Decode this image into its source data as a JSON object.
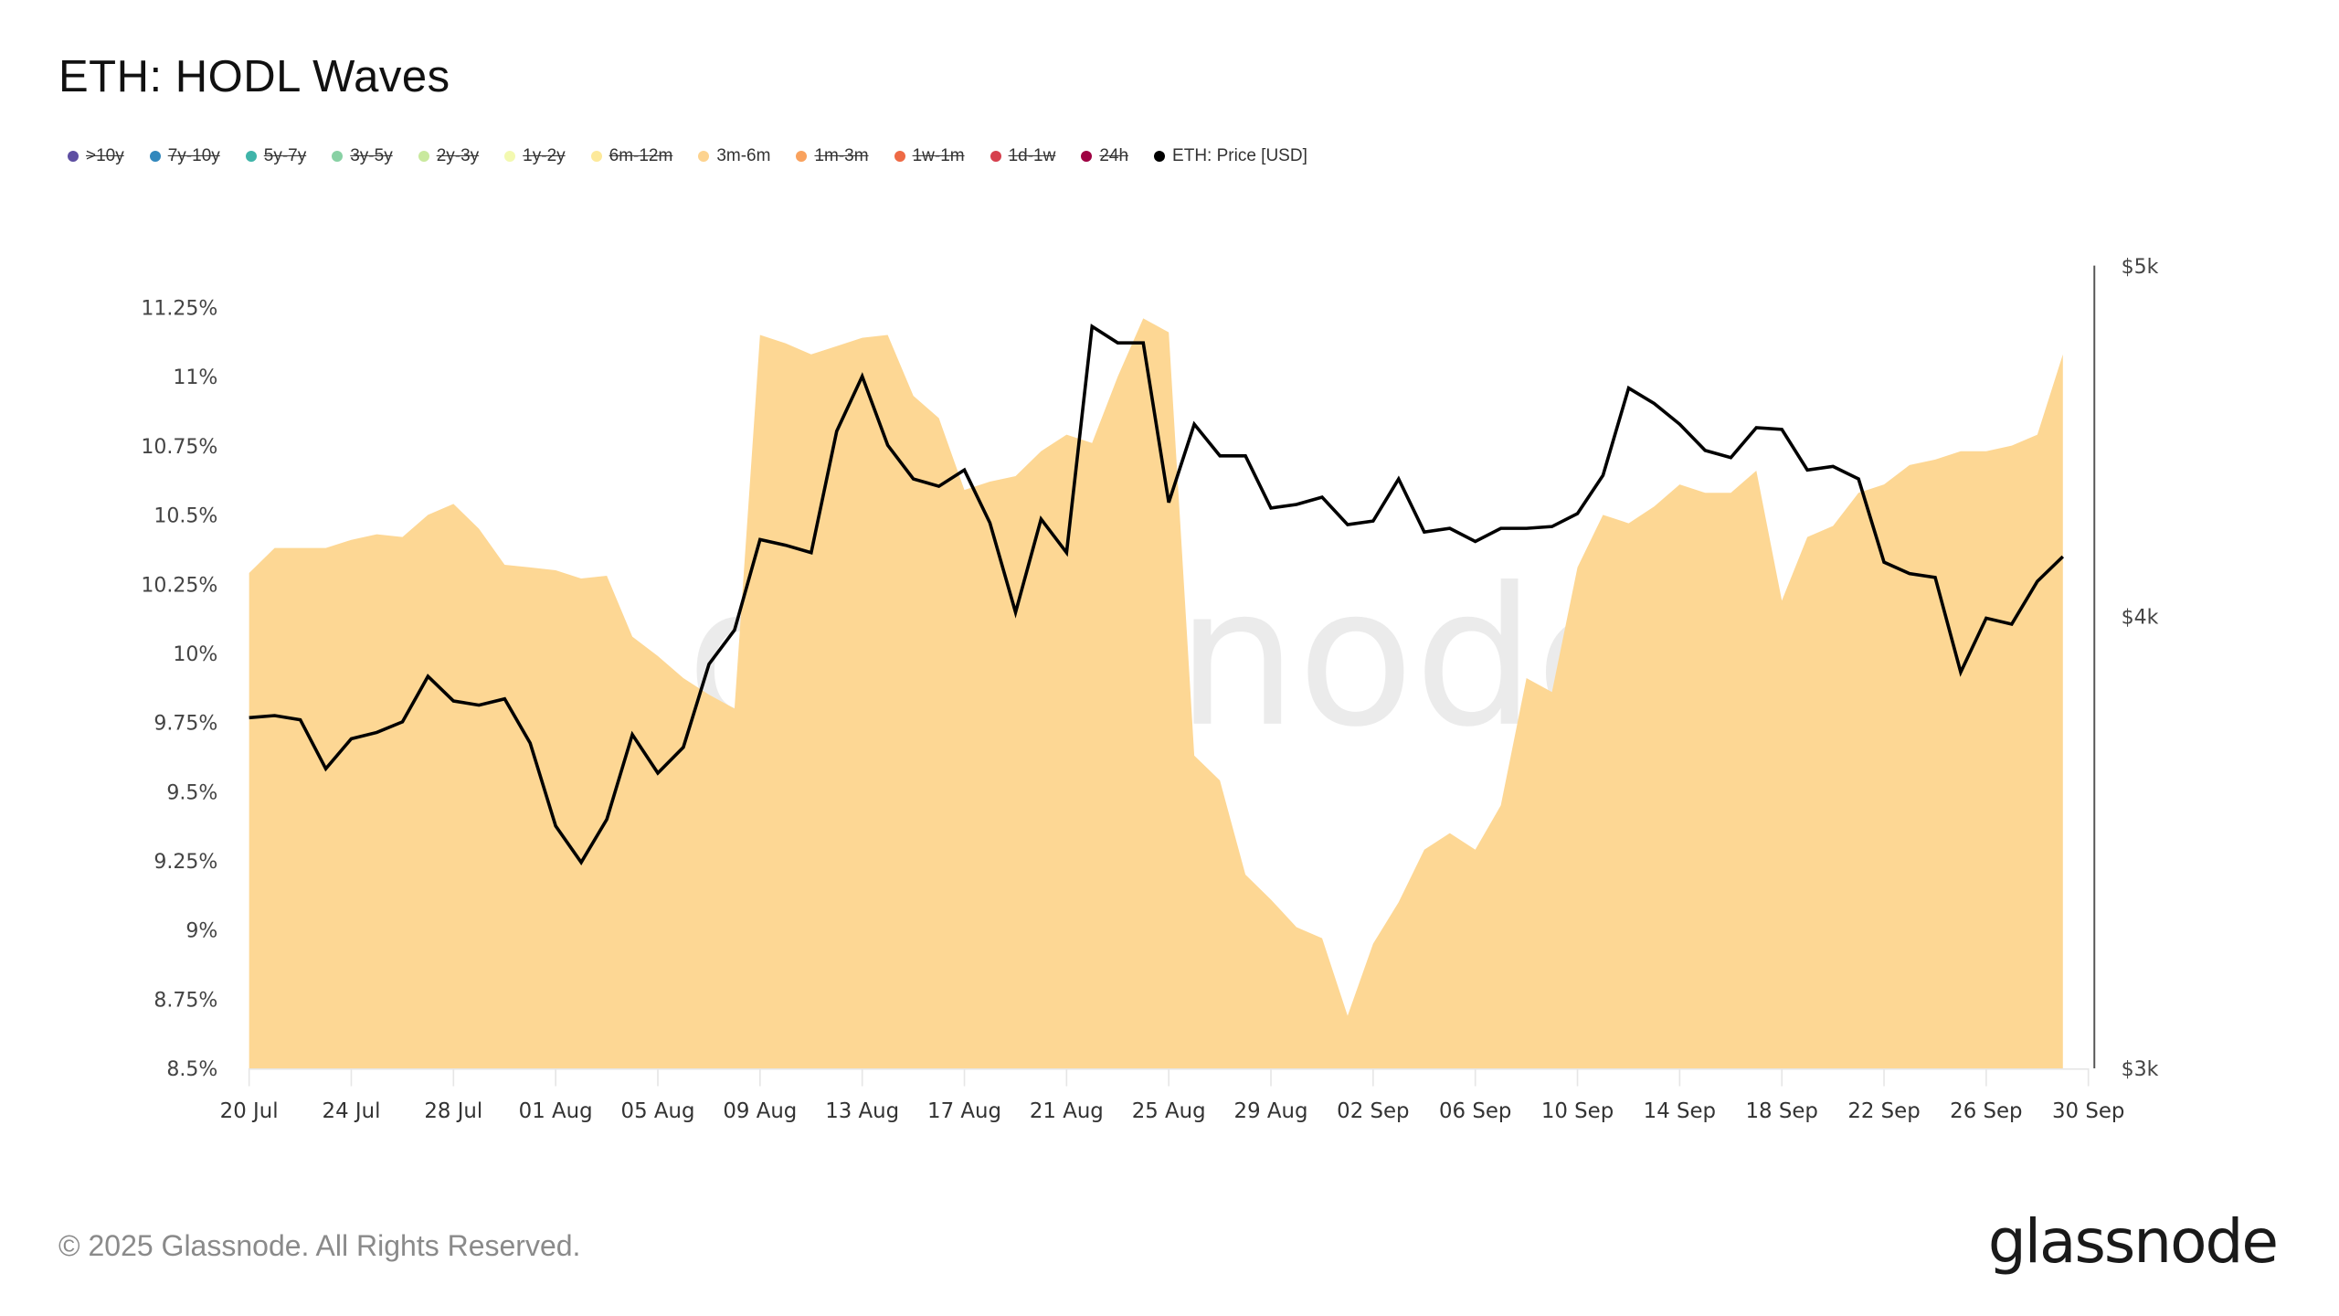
{
  "header": {
    "title": "ETH: HODL Waves"
  },
  "legend": [
    {
      "label": ">10y",
      "color": "#5e4fa2",
      "active": false
    },
    {
      "label": "7y-10y",
      "color": "#3288bd",
      "active": false
    },
    {
      "label": "5y-7y",
      "color": "#3fb4a9",
      "active": false
    },
    {
      "label": "3y-5y",
      "color": "#88d1a4",
      "active": false
    },
    {
      "label": "2y-3y",
      "color": "#c9e99e",
      "active": false
    },
    {
      "label": "1y-2y",
      "color": "#f3f9b0",
      "active": false
    },
    {
      "label": "6m-12m",
      "color": "#fde99a",
      "active": false
    },
    {
      "label": "3m-6m",
      "color": "#fdd38f",
      "active": true
    },
    {
      "label": "1m-3m",
      "color": "#f9a25e",
      "active": false
    },
    {
      "label": "1w-1m",
      "color": "#ee6a45",
      "active": false
    },
    {
      "label": "1d-1w",
      "color": "#d6404e",
      "active": false
    },
    {
      "label": "24h",
      "color": "#9e0142",
      "active": false
    },
    {
      "label": "ETH: Price [USD]",
      "color": "#000000",
      "active": true
    }
  ],
  "footer": {
    "copyright": "© 2025 Glassnode. All Rights Reserved.",
    "logo": "glassnode"
  },
  "watermark": "glassnode",
  "chart_data": {
    "type": "area",
    "title": "ETH: HODL Waves",
    "xlabel": "",
    "ylabel": "",
    "ylim": [
      8.5,
      11.25
    ],
    "y2lim": [
      3000,
      5000
    ],
    "y2scale": "log",
    "grid": false,
    "legend_position": "top",
    "x_tick_labels": [
      "20 Jul",
      "24 Jul",
      "28 Jul",
      "01 Aug",
      "05 Aug",
      "09 Aug",
      "13 Aug",
      "17 Aug",
      "21 Aug",
      "25 Aug",
      "29 Aug",
      "02 Sep",
      "06 Sep",
      "10 Sep",
      "14 Sep",
      "18 Sep",
      "22 Sep",
      "26 Sep",
      "30 Sep"
    ],
    "y_tick_labels": [
      "8.5%",
      "8.75%",
      "9%",
      "9.25%",
      "9.5%",
      "9.75%",
      "10%",
      "10.25%",
      "10.5%",
      "10.75%",
      "11%",
      "11.25%"
    ],
    "y2_tick_labels": [
      "$3k",
      "$4k",
      "$5k"
    ],
    "x_start": "20 Jul",
    "x_end": "29 Sep",
    "series": [
      {
        "name": "3m-6m",
        "type": "area",
        "axis": "left",
        "unit": "%",
        "color": "#fdd794",
        "values": [
          10.29,
          10.38,
          10.38,
          10.38,
          10.41,
          10.43,
          10.42,
          10.5,
          10.54,
          10.45,
          10.32,
          10.31,
          10.3,
          10.27,
          10.28,
          10.06,
          9.99,
          9.91,
          9.85,
          9.8,
          11.15,
          11.12,
          11.08,
          11.11,
          11.14,
          11.15,
          10.93,
          10.85,
          10.59,
          10.62,
          10.64,
          10.73,
          10.79,
          10.76,
          11.0,
          11.21,
          11.16,
          9.63,
          9.54,
          9.2,
          9.11,
          9.01,
          8.97,
          8.69,
          8.95,
          9.1,
          9.29,
          9.35,
          9.29,
          9.45,
          9.91,
          9.86,
          10.31,
          10.5,
          10.47,
          10.53,
          10.61,
          10.58,
          10.58,
          10.66,
          10.19,
          10.42,
          10.46,
          10.58,
          10.61,
          10.68,
          10.7,
          10.73,
          10.73,
          10.75,
          10.79,
          11.08
        ]
      },
      {
        "name": "ETH: Price [USD]",
        "type": "line",
        "axis": "right",
        "unit": "USD",
        "color": "#000000",
        "values": [
          3750,
          3755,
          3745,
          3630,
          3700,
          3715,
          3740,
          3850,
          3790,
          3780,
          3795,
          3690,
          3500,
          3420,
          3515,
          3710,
          3620,
          3680,
          3880,
          3965,
          4200,
          4185,
          4165,
          4500,
          4660,
          4460,
          4365,
          4345,
          4390,
          4245,
          4010,
          4255,
          4165,
          4810,
          4760,
          4760,
          4300,
          4520,
          4430,
          4430,
          4285,
          4295,
          4315,
          4240,
          4250,
          4365,
          4220,
          4230,
          4195,
          4230,
          4230,
          4235,
          4270,
          4375,
          4625,
          4580,
          4520,
          4445,
          4425,
          4510,
          4505,
          4390,
          4400,
          4365,
          4140,
          4110,
          4100,
          3860,
          3995,
          3980,
          4090,
          4155
        ]
      }
    ]
  }
}
